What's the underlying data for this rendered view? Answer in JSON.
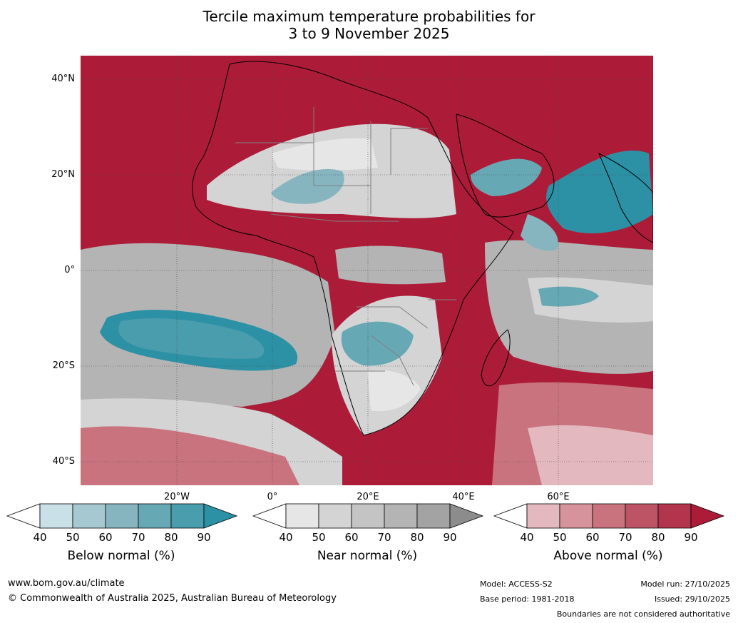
{
  "title": {
    "line1": "Tercile maximum temperature probabilities for",
    "line2": "3 to 9 November 2025"
  },
  "map": {
    "lat_labels": [
      "40°N",
      "20°N",
      "0°",
      "20°S",
      "40°S"
    ],
    "lon_labels": [
      "20°W",
      "0°",
      "20°E",
      "40°E",
      "60°E"
    ],
    "palette": {
      "above": [
        "#e3b9bf",
        "#d6939c",
        "#c9737e",
        "#bd5466",
        "#b3354d",
        "#ac1c38"
      ],
      "near": [
        "#e6e6e6",
        "#d4d4d4",
        "#c4c4c4",
        "#b4b4b4",
        "#a3a3a3",
        "#8c8c8c"
      ],
      "below": [
        "#c8e0e6",
        "#a6c8d0",
        "#86b5c0",
        "#67a8b5",
        "#4a9dad",
        "#2d91a5"
      ],
      "land_line": "#000000",
      "border_line": "#808080"
    }
  },
  "colorbars": [
    {
      "label": "Below normal (%)",
      "ticks": [
        "40",
        "50",
        "60",
        "70",
        "80",
        "90"
      ],
      "colors": [
        "#ffffff",
        "#c8e0e6",
        "#a6c8d0",
        "#86b5c0",
        "#67a8b5",
        "#4a9dad",
        "#2d91a5"
      ]
    },
    {
      "label": "Near normal (%)",
      "ticks": [
        "40",
        "50",
        "60",
        "70",
        "80",
        "90"
      ],
      "colors": [
        "#ffffff",
        "#e6e6e6",
        "#d4d4d4",
        "#c4c4c4",
        "#b4b4b4",
        "#a3a3a3",
        "#8c8c8c"
      ]
    },
    {
      "label": "Above normal (%)",
      "ticks": [
        "40",
        "50",
        "60",
        "70",
        "80",
        "90"
      ],
      "colors": [
        "#ffffff",
        "#e3b9bf",
        "#d6939c",
        "#c9737e",
        "#bd5466",
        "#b3354d",
        "#ac1c38"
      ]
    }
  ],
  "footer": {
    "website": "www.bom.gov.au/climate",
    "copyright": "© Commonwealth of Australia 2025, Australian Bureau of Meteorology",
    "model": "Model: ACCESS-S2",
    "base_period": "Base period: 1981-2018",
    "model_run": "Model run: 27/10/2025",
    "issued": "Issued: 29/10/2025",
    "disclaimer": "Boundaries are not considered authoritative"
  }
}
